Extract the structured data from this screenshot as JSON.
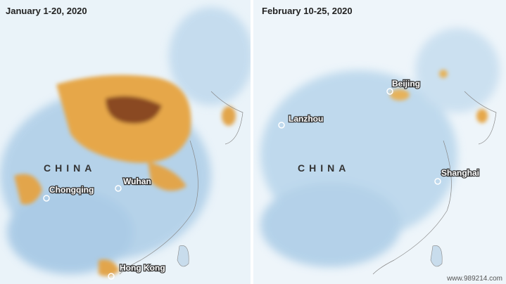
{
  "panels": [
    {
      "title": "January 1-20, 2020",
      "country": "CHINA",
      "cities": [
        "Chongqing",
        "Wuhan",
        "Hong Kong"
      ]
    },
    {
      "title": "February 10-25, 2020",
      "country": "CHINA",
      "cities": [
        "Beijing",
        "Lanzhou",
        "Shanghai"
      ]
    }
  ],
  "watermark": "www.989214.com"
}
